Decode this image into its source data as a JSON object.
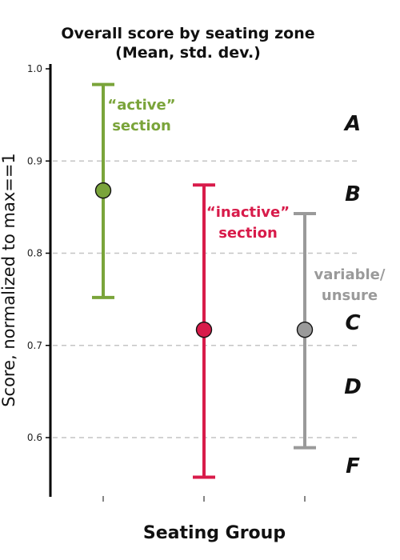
{
  "chart_data": {
    "type": "scatter",
    "title_line1": "Overall score by seating zone",
    "title_line2": "(Mean, std. dev.)",
    "xlabel": "Seating Group",
    "ylabel": "Score, normalized to max==1",
    "ylim": [
      0.55,
      1.005
    ],
    "yticks": [
      "0.6",
      "0.7",
      "0.8",
      "0.9",
      "1.0"
    ],
    "grid": "dashed horizontal at 0.6, 0.7, 0.8, 0.9",
    "groups": [
      {
        "mean": 0.868,
        "low": 0.752,
        "high": 0.983,
        "color": "#7aa43a",
        "label_line1": "“active”",
        "label_line2": "section"
      },
      {
        "mean": 0.717,
        "low": 0.557,
        "high": 0.874,
        "color": "#d81b4a",
        "label_line1": "“inactive”",
        "label_line2": "section"
      },
      {
        "mean": 0.717,
        "low": 0.589,
        "high": 0.843,
        "color": "#9a9a9a",
        "label_line1": "variable/",
        "label_line2": "unsure"
      }
    ],
    "grade_bands": [
      "A",
      "B",
      "C",
      "D",
      "F"
    ]
  }
}
